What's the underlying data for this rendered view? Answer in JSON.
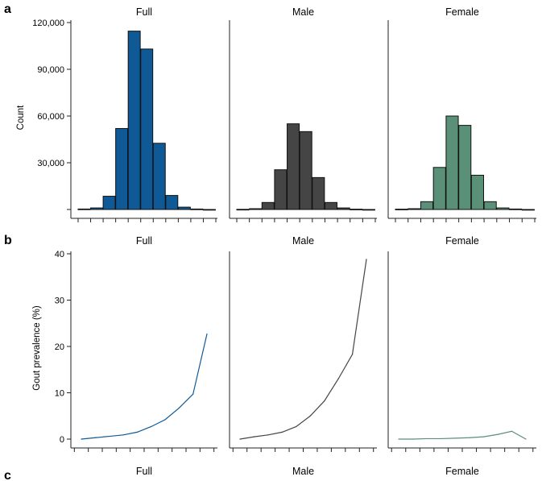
{
  "panel_labels": [
    "a",
    "b",
    "c"
  ],
  "colors": {
    "full": "#0f5a96",
    "male": "#454545",
    "female": "#5a9077",
    "axis": "#222222",
    "bar_outline": "#111111"
  },
  "chart_data": [
    {
      "panel": "a",
      "type": "bar",
      "ylabel": "Count",
      "ylim": [
        0,
        120000
      ],
      "yticks": [
        0,
        30000,
        60000,
        90000,
        120000
      ],
      "ytick_labels": [
        "",
        "30,000",
        "60,000",
        "90,000",
        "120,000"
      ],
      "n_bins": 11,
      "series": [
        {
          "facet": "Full",
          "color_key": "full",
          "values": [
            300,
            1000,
            8500,
            52000,
            114500,
            103000,
            42500,
            9000,
            1500,
            300,
            0
          ]
        },
        {
          "facet": "Male",
          "color_key": "male",
          "values": [
            100,
            500,
            4500,
            25500,
            55000,
            50000,
            20500,
            4500,
            1000,
            200,
            0
          ]
        },
        {
          "facet": "Female",
          "color_key": "female",
          "values": [
            200,
            500,
            5000,
            27000,
            60000,
            54000,
            22000,
            5000,
            1000,
            300,
            0
          ]
        }
      ]
    },
    {
      "panel": "b",
      "type": "line",
      "ylabel": "Gout prevalence (%)",
      "ylim": [
        0,
        40
      ],
      "yticks": [
        0,
        10,
        20,
        30,
        40
      ],
      "ytick_labels": [
        "0",
        "10",
        "20",
        "30",
        "40"
      ],
      "x": [
        1,
        2,
        3,
        4,
        5,
        6,
        7,
        8,
        9,
        10
      ],
      "series": [
        {
          "facet": "Full",
          "color_key": "full",
          "values": [
            0.0,
            0.3,
            0.6,
            0.9,
            1.5,
            2.7,
            4.2,
            6.7,
            9.7,
            22.7
          ]
        },
        {
          "facet": "Male",
          "color_key": "male",
          "values": [
            0.0,
            0.5,
            0.9,
            1.5,
            2.7,
            5.0,
            8.2,
            13.0,
            18.3,
            38.8
          ]
        },
        {
          "facet": "Female",
          "color_key": "female",
          "values": [
            0.0,
            0.0,
            0.1,
            0.1,
            0.2,
            0.3,
            0.5,
            1.0,
            1.7,
            0.0
          ]
        }
      ]
    },
    {
      "panel": "c",
      "type": "line",
      "facets": [
        "Full",
        "Male",
        "Female"
      ]
    }
  ]
}
